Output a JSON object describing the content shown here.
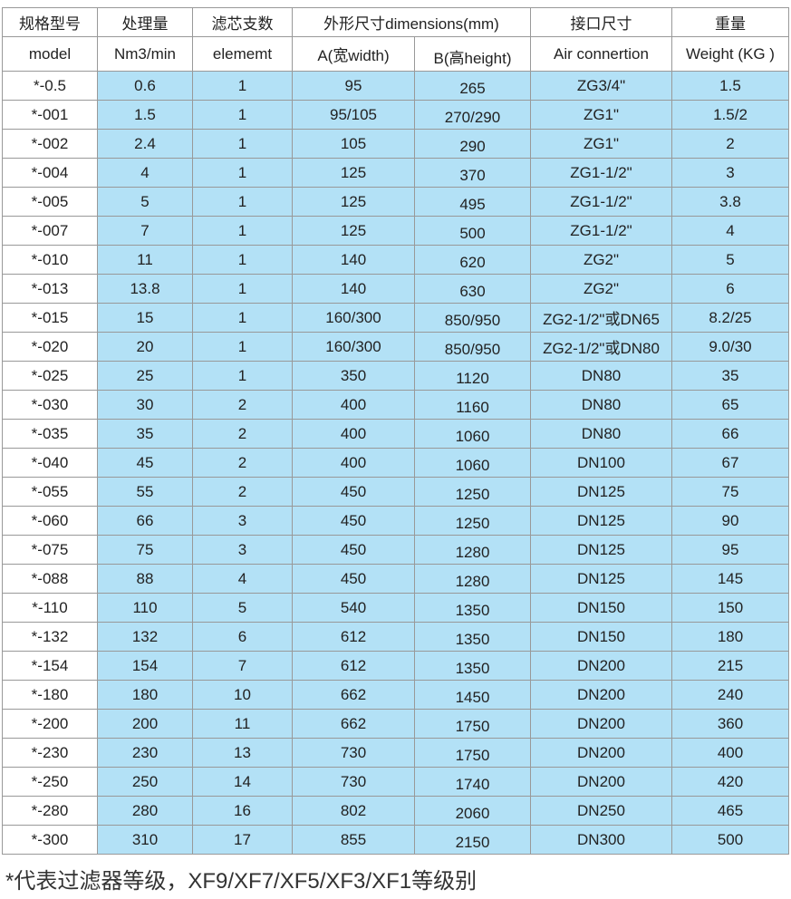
{
  "header": {
    "row1": [
      "规格型号",
      "处理量",
      "滤芯支数",
      "外形尺寸dimensions(mm)",
      "接口尺寸",
      "重量"
    ],
    "row2": [
      "model",
      "Nm3/min",
      "elememt",
      "A(宽width)",
      "B(高height)",
      "Air connertion",
      "Weight (KG )"
    ]
  },
  "rows": [
    [
      "*-0.5",
      "0.6",
      "1",
      "95",
      "265",
      "ZG3/4\"",
      "1.5"
    ],
    [
      "*-001",
      "1.5",
      "1",
      "95/105",
      "270/290",
      "ZG1\"",
      "1.5/2"
    ],
    [
      "*-002",
      "2.4",
      "1",
      "105",
      "290",
      "ZG1\"",
      "2"
    ],
    [
      "*-004",
      "4",
      "1",
      "125",
      "370",
      "ZG1-1/2\"",
      "3"
    ],
    [
      "*-005",
      "5",
      "1",
      "125",
      "495",
      "ZG1-1/2\"",
      "3.8"
    ],
    [
      "*-007",
      "7",
      "1",
      "125",
      "500",
      "ZG1-1/2\"",
      "4"
    ],
    [
      "*-010",
      "11",
      "1",
      "140",
      "620",
      "ZG2\"",
      "5"
    ],
    [
      "*-013",
      "13.8",
      "1",
      "140",
      "630",
      "ZG2\"",
      "6"
    ],
    [
      "*-015",
      "15",
      "1",
      "160/300",
      "850/950",
      "ZG2-1/2\"或DN65",
      "8.2/25"
    ],
    [
      "*-020",
      "20",
      "1",
      "160/300",
      "850/950",
      "ZG2-1/2\"或DN80",
      "9.0/30"
    ],
    [
      "*-025",
      "25",
      "1",
      "350",
      "1120",
      "DN80",
      "35"
    ],
    [
      "*-030",
      "30",
      "2",
      "400",
      "1160",
      "DN80",
      "65"
    ],
    [
      "*-035",
      "35",
      "2",
      "400",
      "1060",
      "DN80",
      "66"
    ],
    [
      "*-040",
      "45",
      "2",
      "400",
      "1060",
      "DN100",
      "67"
    ],
    [
      "*-055",
      "55",
      "2",
      "450",
      "1250",
      "DN125",
      "75"
    ],
    [
      "*-060",
      "66",
      "3",
      "450",
      "1250",
      "DN125",
      "90"
    ],
    [
      "*-075",
      "75",
      "3",
      "450",
      "1280",
      "DN125",
      "95"
    ],
    [
      "*-088",
      "88",
      "4",
      "450",
      "1280",
      "DN125",
      "145"
    ],
    [
      "*-110",
      "110",
      "5",
      "540",
      "1350",
      "DN150",
      "150"
    ],
    [
      "*-132",
      "132",
      "6",
      "612",
      "1350",
      "DN150",
      "180"
    ],
    [
      "*-154",
      "154",
      "7",
      "612",
      "1350",
      "DN200",
      "215"
    ],
    [
      "*-180",
      "180",
      "10",
      "662",
      "1450",
      "DN200",
      "240"
    ],
    [
      "*-200",
      "200",
      "11",
      "662",
      "1750",
      "DN200",
      "360"
    ],
    [
      "*-230",
      "230",
      "13",
      "730",
      "1750",
      "DN200",
      "400"
    ],
    [
      "*-250",
      "250",
      "14",
      "730",
      "1740",
      "DN200",
      "420"
    ],
    [
      "*-280",
      "280",
      "16",
      "802",
      "2060",
      "DN250",
      "465"
    ],
    [
      "*-300",
      "310",
      "17",
      "855",
      "2150",
      "DN300",
      "500"
    ]
  ],
  "footnote": "*代表过滤器等级，XF9/XF7/XF5/XF3/XF1等级别",
  "colors": {
    "cell_bg": "#b3e1f6",
    "border": "#999999"
  }
}
